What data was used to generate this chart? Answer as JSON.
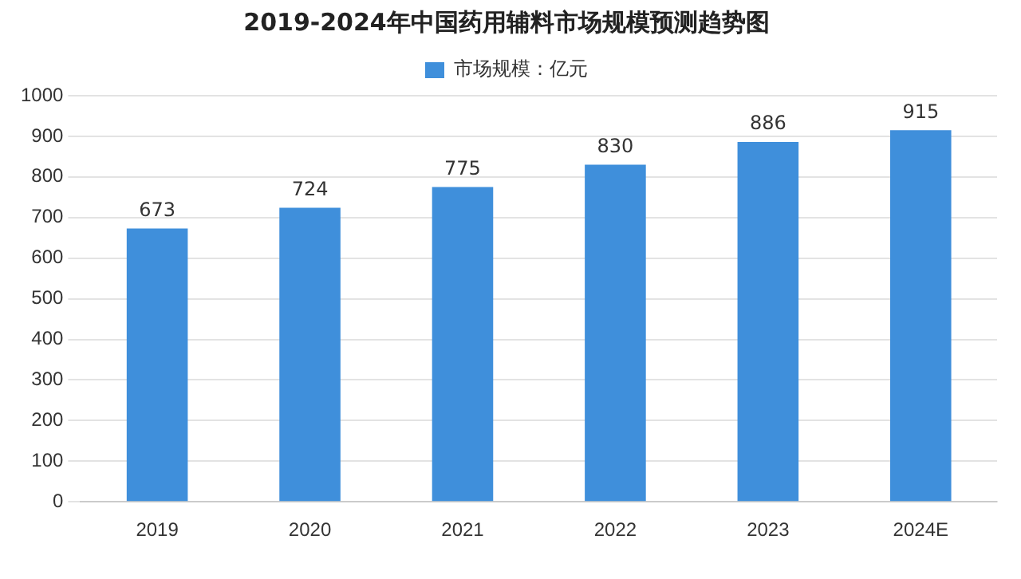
{
  "chart_data": {
    "type": "bar",
    "title": "2019-2024年中国药用辅料市场规模预测趋势图",
    "categories": [
      "2019",
      "2020",
      "2021",
      "2022",
      "2023",
      "2024E"
    ],
    "series": [
      {
        "name": "市场规模：亿元",
        "color": "#3f8fdb",
        "values": [
          673,
          724,
          775,
          830,
          886,
          915
        ]
      }
    ],
    "ylim": [
      0,
      1000
    ],
    "yticks": [
      0,
      100,
      200,
      300,
      400,
      500,
      600,
      700,
      800,
      900,
      1000
    ],
    "grid": "y",
    "legend": "top",
    "data_labels": true
  }
}
